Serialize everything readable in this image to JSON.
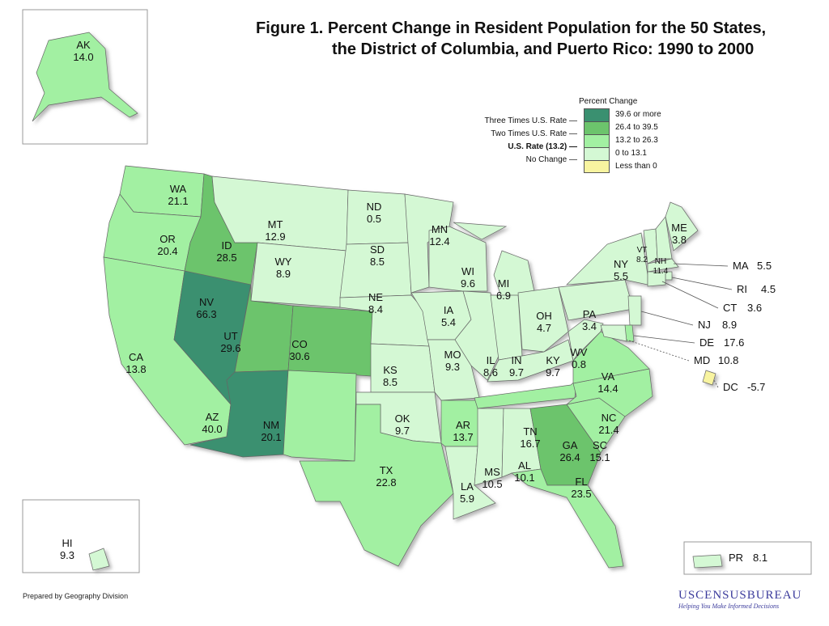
{
  "title": {
    "line1": "Figure 1.  Percent Change in Resident Population for the 50 States,",
    "line2": "the District of Columbia, and Puerto Rico: 1990 to 2000"
  },
  "legend": {
    "heading": "Percent Change",
    "classes": [
      {
        "label": "39.6 or more",
        "color": "#3a9070",
        "min": 39.6
      },
      {
        "label": "26.4 to 39.5",
        "color": "#6cc46c",
        "min": 26.4
      },
      {
        "label": "13.2 to 26.3",
        "color": "#a2f0a2",
        "min": 13.2
      },
      {
        "label": "0 to 13.1",
        "color": "#d4f8d4",
        "min": 0
      },
      {
        "label": "Less than 0",
        "color": "#f8f4a0",
        "min": -1000
      }
    ],
    "rates": [
      "Three Times U.S. Rate",
      "Two Times U.S. Rate",
      "U.S. Rate (13.2)",
      "No Change"
    ]
  },
  "states": [
    {
      "abbr": "WA",
      "value": "21.1"
    },
    {
      "abbr": "OR",
      "value": "20.4"
    },
    {
      "abbr": "CA",
      "value": "13.8"
    },
    {
      "abbr": "NV",
      "value": "66.3"
    },
    {
      "abbr": "ID",
      "value": "28.5"
    },
    {
      "abbr": "MT",
      "value": "12.9"
    },
    {
      "abbr": "WY",
      "value": "8.9"
    },
    {
      "abbr": "UT",
      "value": "29.6"
    },
    {
      "abbr": "CO",
      "value": "30.6"
    },
    {
      "abbr": "AZ",
      "value": "40.0"
    },
    {
      "abbr": "NM",
      "value": "20.1"
    },
    {
      "abbr": "ND",
      "value": "0.5"
    },
    {
      "abbr": "SD",
      "value": "8.5"
    },
    {
      "abbr": "NE",
      "value": "8.4"
    },
    {
      "abbr": "KS",
      "value": "8.5"
    },
    {
      "abbr": "OK",
      "value": "9.7"
    },
    {
      "abbr": "TX",
      "value": "22.8"
    },
    {
      "abbr": "MN",
      "value": "12.4"
    },
    {
      "abbr": "IA",
      "value": "5.4"
    },
    {
      "abbr": "MO",
      "value": "9.3"
    },
    {
      "abbr": "AR",
      "value": "13.7"
    },
    {
      "abbr": "LA",
      "value": "5.9"
    },
    {
      "abbr": "WI",
      "value": "9.6"
    },
    {
      "abbr": "IL",
      "value": "8.6"
    },
    {
      "abbr": "MI",
      "value": "6.9"
    },
    {
      "abbr": "IN",
      "value": "9.7"
    },
    {
      "abbr": "OH",
      "value": "4.7"
    },
    {
      "abbr": "KY",
      "value": "9.7"
    },
    {
      "abbr": "TN",
      "value": "16.7"
    },
    {
      "abbr": "MS",
      "value": "10.5"
    },
    {
      "abbr": "AL",
      "value": "10.1"
    },
    {
      "abbr": "GA",
      "value": "26.4"
    },
    {
      "abbr": "FL",
      "value": "23.5"
    },
    {
      "abbr": "SC",
      "value": "15.1"
    },
    {
      "abbr": "NC",
      "value": "21.4"
    },
    {
      "abbr": "VA",
      "value": "14.4"
    },
    {
      "abbr": "WV",
      "value": "0.8"
    },
    {
      "abbr": "PA",
      "value": "3.4"
    },
    {
      "abbr": "NY",
      "value": "5.5"
    },
    {
      "abbr": "VT",
      "value": "8.2"
    },
    {
      "abbr": "NH",
      "value": "11.4"
    },
    {
      "abbr": "ME",
      "value": "3.8"
    },
    {
      "abbr": "MA",
      "value": "5.5"
    },
    {
      "abbr": "RI",
      "value": "4.5"
    },
    {
      "abbr": "CT",
      "value": "3.6"
    },
    {
      "abbr": "NJ",
      "value": "8.9"
    },
    {
      "abbr": "DE",
      "value": "17.6"
    },
    {
      "abbr": "MD",
      "value": "10.8"
    },
    {
      "abbr": "DC",
      "value": "-5.7"
    },
    {
      "abbr": "AK",
      "value": "14.0"
    },
    {
      "abbr": "HI",
      "value": "9.3"
    },
    {
      "abbr": "PR",
      "value": "8.1"
    }
  ],
  "footer": {
    "prepared": "Prepared by Geography Division"
  },
  "logo": {
    "name": "USCENSUSBUREAU",
    "tagline": "Helping You Make Informed Decisions"
  }
}
